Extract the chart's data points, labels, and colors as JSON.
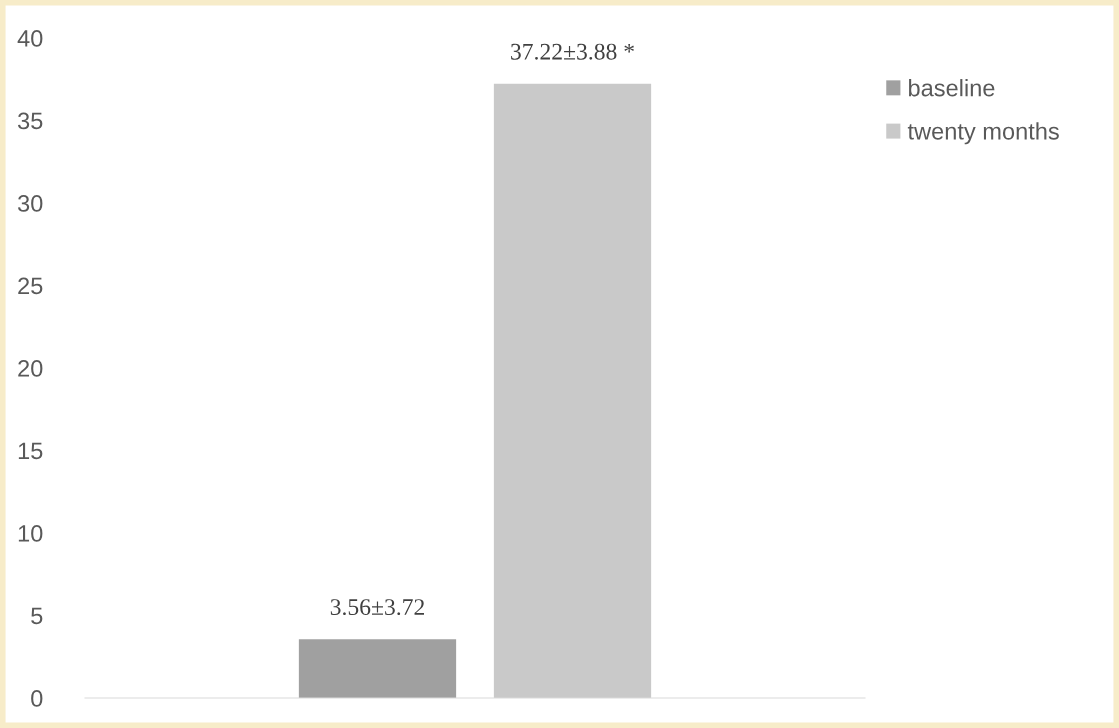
{
  "chart_data": {
    "type": "bar",
    "categories": [
      null
    ],
    "series": [
      {
        "name": "baseline",
        "color": "#a0a0a0",
        "values": [
          3.56
        ],
        "value_labels": [
          "3.56±3.72"
        ]
      },
      {
        "name": "twenty months",
        "color": "#c9c9c9",
        "values": [
          37.22
        ],
        "value_labels": [
          "37.22±3.88 *"
        ]
      }
    ],
    "ylim": [
      0,
      40
    ],
    "yticks": [
      0,
      5,
      10,
      15,
      20,
      25,
      30,
      35,
      40
    ],
    "grid": false,
    "legend": "top right"
  }
}
